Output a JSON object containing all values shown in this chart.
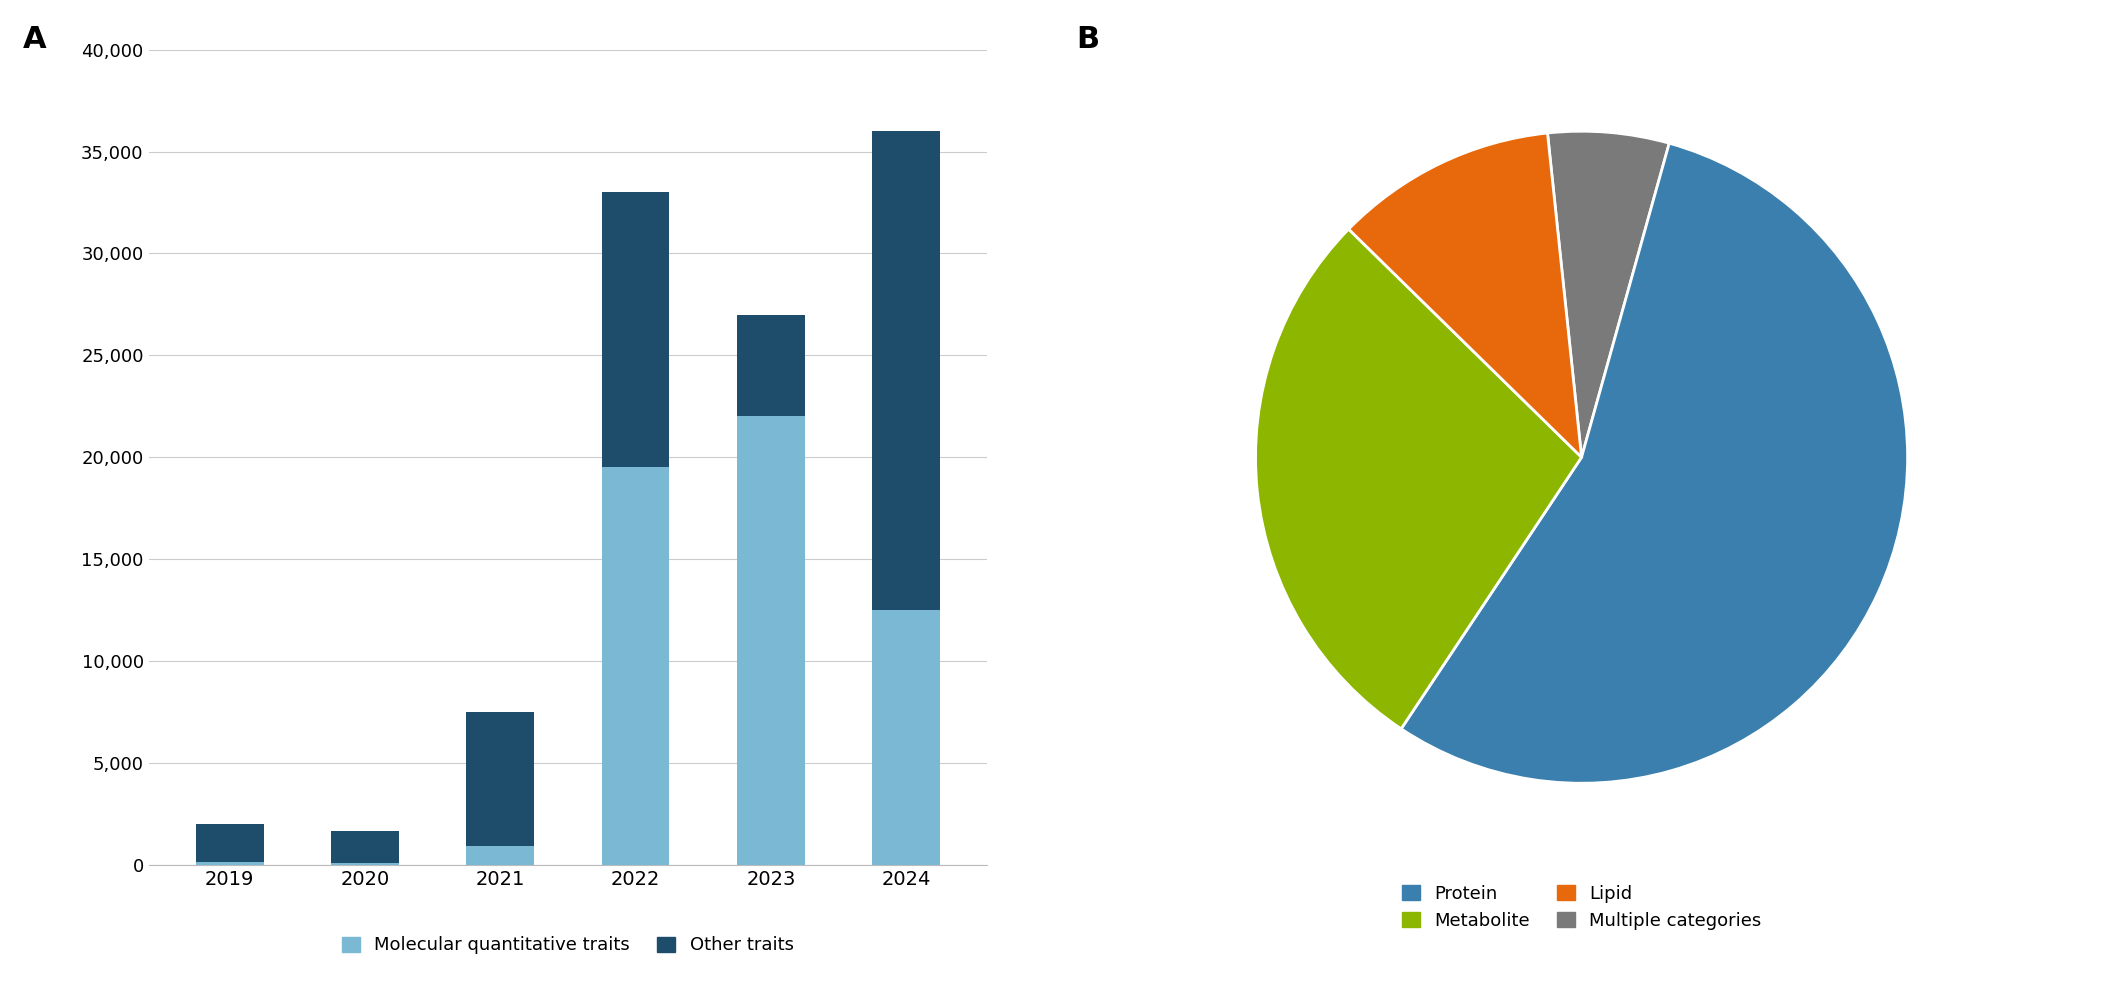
{
  "bar_years": [
    "2019",
    "2020",
    "2021",
    "2022",
    "2023",
    "2024"
  ],
  "molecular_values": [
    150,
    100,
    900,
    19500,
    22000,
    12500
  ],
  "other_values": [
    1850,
    1550,
    6600,
    13500,
    5000,
    23500
  ],
  "bar_color_molecular": "#7ab8d4",
  "bar_color_other": "#1e4d6b",
  "ylim": [
    0,
    40000
  ],
  "yticks": [
    0,
    5000,
    10000,
    15000,
    20000,
    25000,
    30000,
    35000,
    40000
  ],
  "legend_molecular": "Molecular quantitative traits",
  "legend_other": "Other traits",
  "panel_a_label": "A",
  "panel_b_label": "B",
  "pie_values": [
    55.0,
    28.0,
    11.0,
    6.0
  ],
  "pie_labels_ordered": [
    "Protein",
    "Metabolite",
    "Lipid",
    "Multiple categories"
  ],
  "pie_colors_ordered": [
    "#3a7fad",
    "#8db600",
    "#e8690b",
    "#7a7a7a"
  ],
  "pie_startangle": 96,
  "pie_counterclock": false,
  "wedge_order": [
    3,
    0,
    1,
    2
  ],
  "pie_legend_items": [
    {
      "label": "Protein",
      "color": "#3a7fad"
    },
    {
      "label": "Metabolite",
      "color": "#8db600"
    },
    {
      "label": "Lipid",
      "color": "#e8690b"
    },
    {
      "label": "Multiple categories",
      "color": "#7a7a7a"
    }
  ]
}
